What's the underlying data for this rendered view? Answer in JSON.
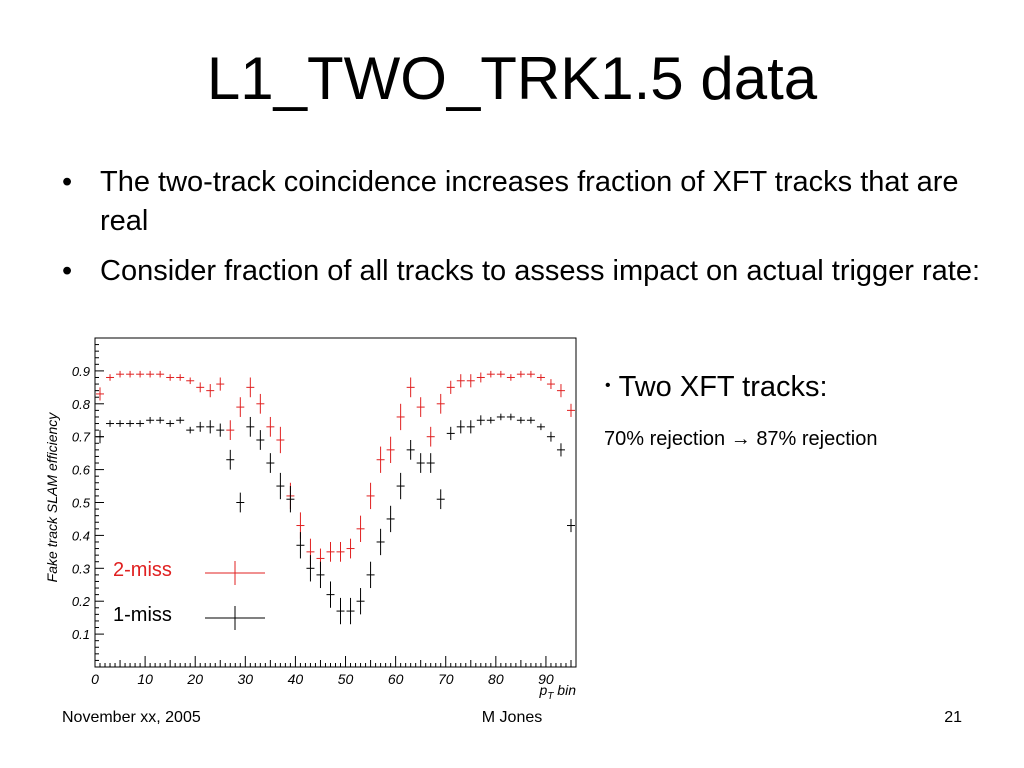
{
  "slide": {
    "title": "L1_TWO_TRK1.5 data",
    "bullets": [
      "The two-track coincidence increases fraction of XFT tracks that are real",
      "Consider fraction of all tracks to assess impact on actual trigger rate:"
    ],
    "side_bullet": "Two XFT tracks:",
    "side_note_before": "70% rejection",
    "side_note_arrow": "→",
    "side_note_after": "87% rejection"
  },
  "footer": {
    "left": "November xx, 2005",
    "center": "M Jones",
    "right": "21"
  },
  "chart_data": {
    "type": "scatter",
    "ylabel": "Fake track SLAM efficiency",
    "xlabel_main": "p",
    "xlabel_sub": "T",
    "xlabel_suffix": " bin",
    "xlim": [
      0,
      96
    ],
    "ylim": [
      0,
      1.0
    ],
    "x_ticks": [
      0,
      10,
      20,
      30,
      40,
      50,
      60,
      70,
      80,
      90
    ],
    "y_ticks": [
      0.1,
      0.2,
      0.3,
      0.4,
      0.5,
      0.6,
      0.7,
      0.8,
      0.9
    ],
    "legend": [
      {
        "name": "2-miss",
        "color": "#e02020"
      },
      {
        "name": "1-miss",
        "color": "#000000"
      }
    ],
    "series": [
      {
        "name": "2-miss",
        "color": "#e02020",
        "x": [
          1,
          3,
          5,
          7,
          9,
          11,
          13,
          15,
          17,
          19,
          21,
          23,
          25,
          27,
          29,
          31,
          33,
          35,
          37,
          39,
          41,
          43,
          45,
          47,
          49,
          51,
          53,
          55,
          57,
          59,
          61,
          63,
          65,
          67,
          69,
          71,
          73,
          75,
          77,
          79,
          81,
          83,
          85,
          87,
          89,
          91,
          93,
          95
        ],
        "y": [
          0.83,
          0.88,
          0.89,
          0.89,
          0.89,
          0.89,
          0.89,
          0.88,
          0.88,
          0.87,
          0.85,
          0.84,
          0.86,
          0.72,
          0.79,
          0.85,
          0.8,
          0.73,
          0.69,
          0.52,
          0.43,
          0.35,
          0.33,
          0.35,
          0.35,
          0.36,
          0.42,
          0.52,
          0.63,
          0.66,
          0.76,
          0.85,
          0.79,
          0.7,
          0.8,
          0.85,
          0.87,
          0.87,
          0.88,
          0.89,
          0.89,
          0.88,
          0.89,
          0.89,
          0.88,
          0.86,
          0.84,
          0.78
        ],
        "err": [
          0.02,
          0.01,
          0.01,
          0.01,
          0.01,
          0.01,
          0.01,
          0.01,
          0.01,
          0.01,
          0.015,
          0.02,
          0.02,
          0.03,
          0.03,
          0.03,
          0.03,
          0.03,
          0.04,
          0.04,
          0.04,
          0.04,
          0.03,
          0.03,
          0.03,
          0.03,
          0.04,
          0.04,
          0.04,
          0.04,
          0.04,
          0.03,
          0.03,
          0.03,
          0.03,
          0.02,
          0.02,
          0.02,
          0.015,
          0.01,
          0.01,
          0.01,
          0.01,
          0.01,
          0.01,
          0.015,
          0.02,
          0.02
        ]
      },
      {
        "name": "1-miss",
        "color": "#000000",
        "x": [
          1,
          3,
          5,
          7,
          9,
          11,
          13,
          15,
          17,
          19,
          21,
          23,
          25,
          27,
          29,
          31,
          33,
          35,
          37,
          39,
          41,
          43,
          45,
          47,
          49,
          51,
          53,
          55,
          57,
          59,
          61,
          63,
          65,
          67,
          69,
          71,
          73,
          75,
          77,
          79,
          81,
          83,
          85,
          87,
          89,
          91,
          93,
          95
        ],
        "y": [
          0.7,
          0.74,
          0.74,
          0.74,
          0.74,
          0.75,
          0.75,
          0.74,
          0.75,
          0.72,
          0.73,
          0.73,
          0.72,
          0.63,
          0.5,
          0.73,
          0.69,
          0.62,
          0.55,
          0.51,
          0.37,
          0.3,
          0.28,
          0.22,
          0.17,
          0.17,
          0.2,
          0.28,
          0.38,
          0.45,
          0.55,
          0.66,
          0.62,
          0.62,
          0.51,
          0.71,
          0.73,
          0.73,
          0.75,
          0.75,
          0.76,
          0.76,
          0.75,
          0.75,
          0.73,
          0.7,
          0.66,
          0.43
        ],
        "err": [
          0.02,
          0.01,
          0.01,
          0.01,
          0.01,
          0.01,
          0.01,
          0.01,
          0.01,
          0.01,
          0.015,
          0.02,
          0.02,
          0.03,
          0.03,
          0.03,
          0.03,
          0.03,
          0.04,
          0.04,
          0.04,
          0.04,
          0.04,
          0.04,
          0.04,
          0.04,
          0.04,
          0.04,
          0.04,
          0.04,
          0.04,
          0.03,
          0.03,
          0.03,
          0.03,
          0.02,
          0.02,
          0.02,
          0.015,
          0.01,
          0.01,
          0.01,
          0.01,
          0.01,
          0.01,
          0.015,
          0.02,
          0.02
        ]
      }
    ]
  }
}
